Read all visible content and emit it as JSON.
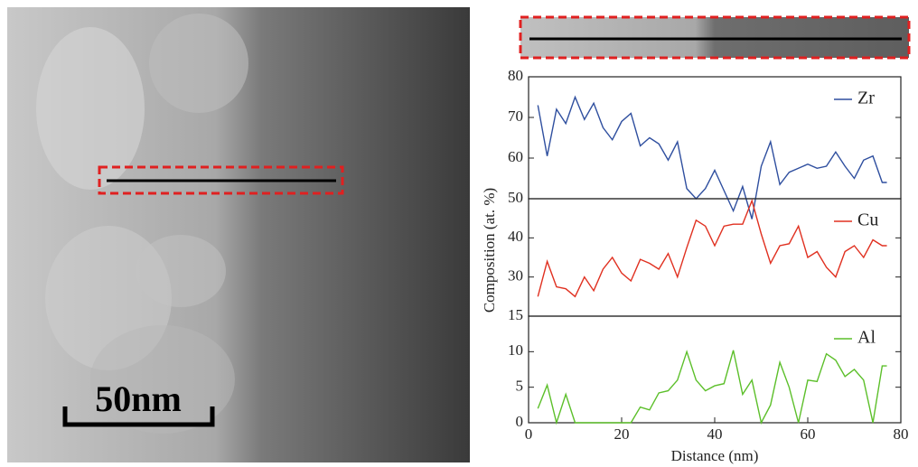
{
  "figure": {
    "ylabel": "Composition (at. %)",
    "scale_bar": "50nm"
  },
  "chart_data": [
    {
      "type": "line",
      "x": [
        2,
        4,
        6,
        8,
        10,
        12,
        14,
        16,
        18,
        20,
        22,
        24,
        26,
        28,
        30,
        32,
        34,
        36,
        38,
        40,
        42,
        44,
        46,
        48,
        50,
        52,
        54,
        56,
        58,
        60,
        62,
        64,
        66,
        68,
        70,
        72,
        74,
        76,
        77
      ],
      "series": [
        {
          "name": "Zr",
          "color": "#2f4f9f",
          "values": [
            73,
            60.5,
            72,
            68.5,
            75,
            69.5,
            73.5,
            67.5,
            64.5,
            69,
            71,
            63,
            65,
            63.5,
            59.5,
            64,
            52.5,
            50,
            52.5,
            57,
            52,
            47,
            53,
            45,
            58,
            64,
            53.5,
            56.5,
            57.5,
            58.5,
            57.5,
            58,
            61.5,
            58,
            55,
            59.5,
            60.5,
            54,
            54
          ]
        }
      ],
      "xlim": [
        0,
        80
      ],
      "ylim": [
        50,
        80
      ],
      "yticks": [
        60,
        70,
        80
      ],
      "legend": "upper right"
    },
    {
      "type": "line",
      "x": [
        2,
        4,
        6,
        8,
        10,
        12,
        14,
        16,
        18,
        20,
        22,
        24,
        26,
        28,
        30,
        32,
        34,
        36,
        38,
        40,
        42,
        44,
        46,
        48,
        50,
        52,
        54,
        56,
        58,
        60,
        62,
        64,
        66,
        68,
        70,
        72,
        74,
        76,
        77
      ],
      "series": [
        {
          "name": "Cu",
          "color": "#e03020",
          "values": [
            25,
            34,
            27.5,
            27,
            25,
            30,
            26.5,
            32,
            35,
            31,
            29,
            34.5,
            33.5,
            32,
            36,
            30,
            37.5,
            44.5,
            43,
            38,
            43,
            43.5,
            43.5,
            49.5,
            41,
            33.5,
            38,
            38.5,
            43,
            35,
            36.5,
            32.5,
            30,
            36.5,
            38,
            35,
            39.5,
            38,
            38
          ]
        }
      ],
      "xlim": [
        0,
        80
      ],
      "ylim": [
        20,
        50
      ],
      "yticks": [
        30,
        40,
        50
      ],
      "legend": "upper right"
    },
    {
      "type": "line",
      "x": [
        2,
        4,
        6,
        8,
        10,
        12,
        14,
        16,
        18,
        20,
        22,
        24,
        26,
        28,
        30,
        32,
        34,
        36,
        38,
        40,
        42,
        44,
        46,
        48,
        50,
        52,
        54,
        56,
        58,
        60,
        62,
        64,
        66,
        68,
        70,
        72,
        74,
        76,
        77
      ],
      "series": [
        {
          "name": "Al",
          "color": "#5cbf2a",
          "values": [
            2,
            5.3,
            0,
            4,
            0,
            0,
            0,
            0,
            0,
            0,
            0,
            2.2,
            1.8,
            4.2,
            4.5,
            6,
            10,
            6,
            4.5,
            5.2,
            5.5,
            10.2,
            4,
            6,
            0,
            2.5,
            8.5,
            5,
            0,
            6,
            5.8,
            9.7,
            8.8,
            6.5,
            7.5,
            6,
            0,
            8,
            8
          ]
        }
      ],
      "xlim": [
        0,
        80
      ],
      "xticks": [
        0,
        20,
        40,
        60,
        80
      ],
      "xlabel": "Distance (nm)",
      "ylim": [
        0,
        15
      ],
      "yticks": [
        0,
        5,
        10,
        15
      ],
      "legend": "upper right"
    }
  ]
}
